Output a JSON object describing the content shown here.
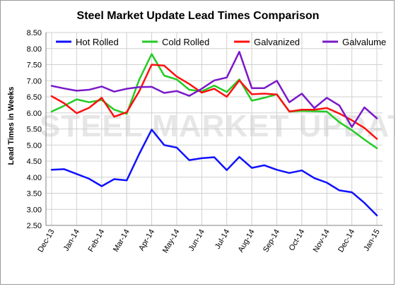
{
  "chart_data": {
    "type": "line",
    "title": "Steel Market Update Lead Times Comparison",
    "ylabel": "Lead Times in Weeks",
    "xlabel": "",
    "ylim": [
      2.5,
      8.5
    ],
    "yticks": [
      "2.50",
      "3.00",
      "3.50",
      "4.00",
      "4.50",
      "5.00",
      "5.50",
      "6.00",
      "6.50",
      "7.00",
      "7.50",
      "8.00",
      "8.50"
    ],
    "grid": true,
    "legend_position": "top",
    "watermark": "STEEL MARKET UPDATE",
    "x_tick_labels": [
      "Dec-13",
      "Jan-14",
      "Feb-14",
      "Mar-14",
      "Apr-14",
      "May-14",
      "Jun-14",
      "Jul-14",
      "Aug-14",
      "Sep-14",
      "Oct-14",
      "Nov-14",
      "Dec-14",
      "Jan-15"
    ],
    "x_tick_index": [
      0,
      2,
      4,
      6,
      8,
      10,
      12,
      14,
      16,
      18,
      20,
      22,
      24,
      26
    ],
    "series": [
      {
        "name": "Hot Rolled",
        "color": "#1010ff",
        "values": [
          4.23,
          4.25,
          4.1,
          3.95,
          3.72,
          3.94,
          3.9,
          4.72,
          5.48,
          5.0,
          4.92,
          4.53,
          4.59,
          4.62,
          4.22,
          4.63,
          4.29,
          4.37,
          4.23,
          4.13,
          4.21,
          3.97,
          3.83,
          3.59,
          3.53,
          3.2,
          2.81
        ]
      },
      {
        "name": "Cold Rolled",
        "color": "#22cc22",
        "values": [
          6.04,
          6.22,
          6.42,
          6.33,
          6.4,
          6.1,
          5.97,
          7.03,
          7.83,
          7.16,
          7.04,
          6.72,
          6.67,
          6.85,
          6.65,
          7.04,
          6.38,
          6.47,
          6.58,
          6.04,
          6.06,
          6.05,
          6.04,
          5.71,
          5.46,
          5.17,
          4.9
        ]
      },
      {
        "name": "Galvanized",
        "color": "#ff1010",
        "values": [
          6.52,
          6.3,
          5.99,
          6.16,
          6.47,
          5.88,
          6.02,
          6.67,
          7.5,
          7.47,
          7.13,
          6.9,
          6.63,
          6.75,
          6.5,
          7.01,
          6.58,
          6.6,
          6.57,
          6.04,
          6.1,
          6.1,
          6.15,
          5.98,
          5.77,
          5.53,
          5.19
        ]
      },
      {
        "name": "Galvalume",
        "color": "#7a19c9",
        "values": [
          6.84,
          6.76,
          6.69,
          6.72,
          6.82,
          6.66,
          6.75,
          6.8,
          6.81,
          6.62,
          6.68,
          6.53,
          6.75,
          7.01,
          7.1,
          7.9,
          6.77,
          6.77,
          7.0,
          6.33,
          6.6,
          6.15,
          6.47,
          6.23,
          5.56,
          6.17,
          5.83
        ]
      }
    ]
  }
}
